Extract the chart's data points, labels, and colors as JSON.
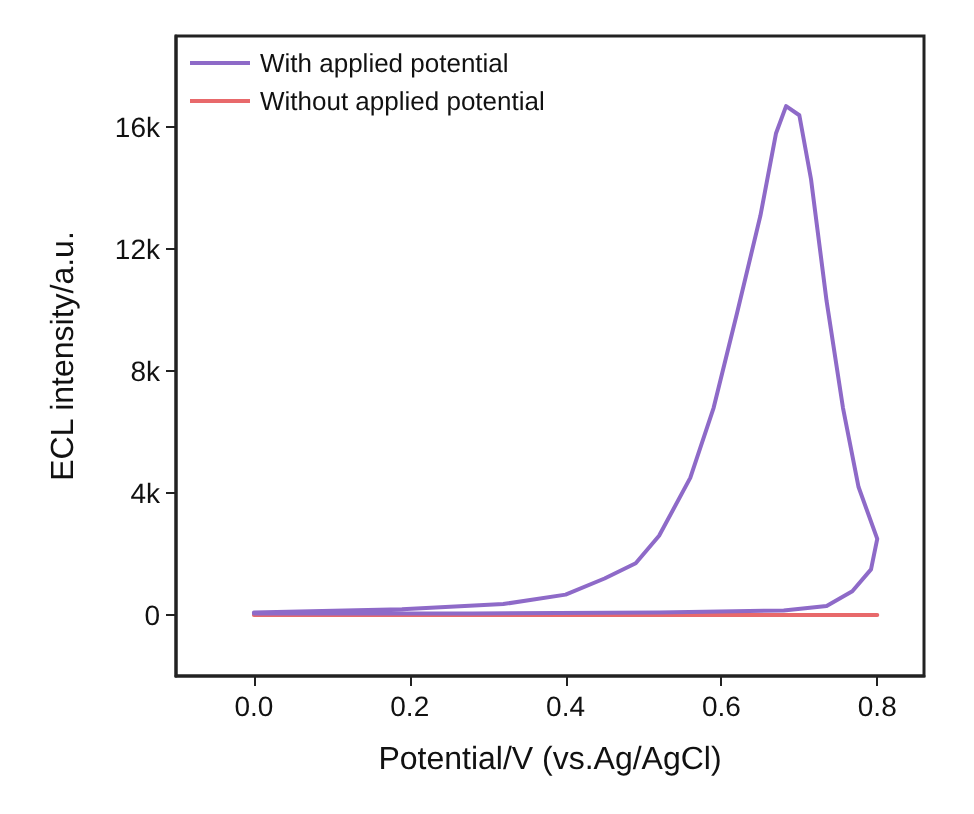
{
  "chart_data": {
    "type": "line",
    "xlabel": "Potential/V (vs.Ag/AgCl)",
    "ylabel": "ECL intensity/a.u.",
    "xlim": [
      -0.1,
      0.86
    ],
    "xticks": [
      {
        "value": 0,
        "label": "0.0"
      },
      0.2,
      0.4,
      0.6,
      0.8
    ],
    "ylim": [
      -2000,
      19000
    ],
    "yticks": [
      0,
      {
        "value": 4000,
        "label": "4k"
      },
      {
        "value": 8000,
        "label": "8k"
      },
      {
        "value": 12000,
        "label": "12k"
      },
      {
        "value": 16000,
        "label": "16k"
      }
    ],
    "grid": false,
    "legend": "top left",
    "marker": "none",
    "line_style": "solid",
    "series": [
      {
        "name": "With applied potential",
        "color": "#8e6ac8",
        "x": [
          0,
          0.19,
          0.32,
          0.4,
          0.45,
          0.49,
          0.52,
          0.56,
          0.59,
          0.62,
          0.65,
          0.67,
          0.683,
          0.7,
          0.715,
          0.735,
          0.756,
          0.776,
          0.8,
          0.792,
          0.768,
          0.735,
          0.68,
          0.52,
          0.28,
          0
        ],
        "values": [
          80,
          190,
          360,
          670,
          1200,
          1700,
          2600,
          4500,
          6800,
          9900,
          13100,
          15800,
          16700,
          16400,
          14300,
          10300,
          6800,
          4200,
          2500,
          1500,
          780,
          300,
          150,
          80,
          50,
          50
        ]
      },
      {
        "name": "Without applied potential",
        "color": "#e8696b",
        "x": [
          0,
          0.8
        ],
        "values": [
          0,
          0
        ]
      }
    ]
  }
}
